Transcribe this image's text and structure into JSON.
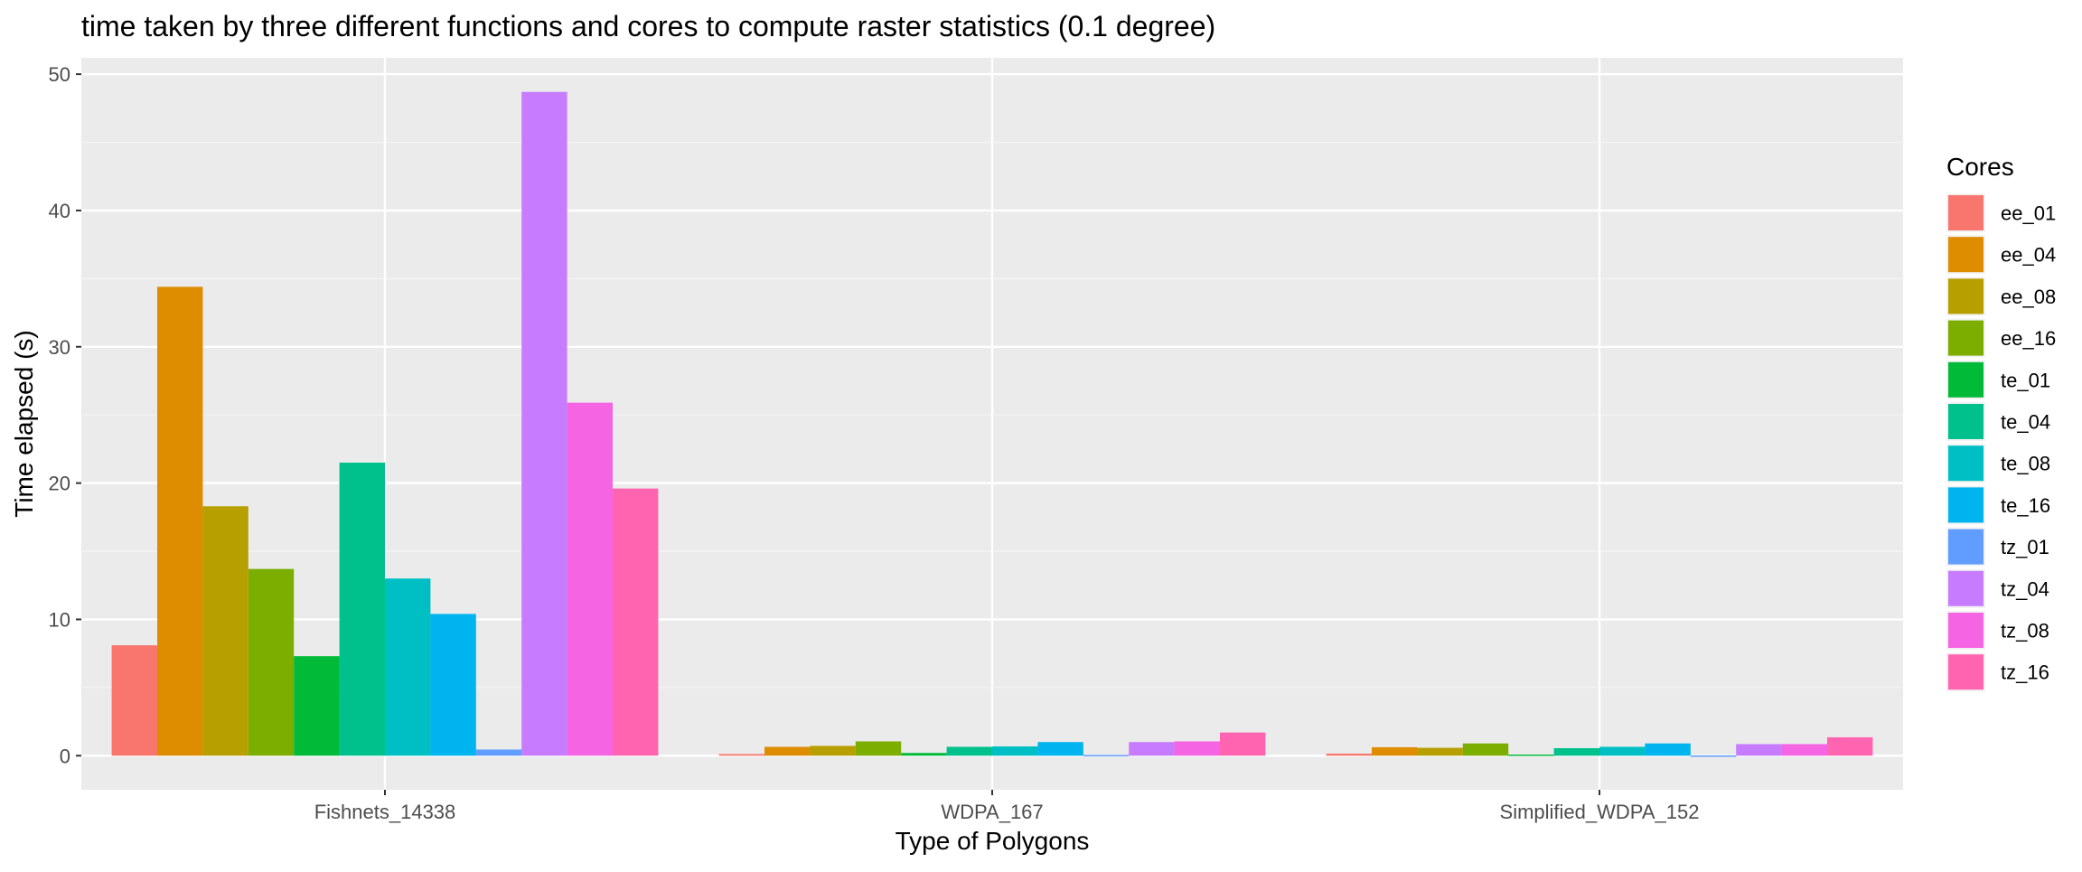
{
  "chart_data": {
    "type": "bar",
    "title": "time taken by three different functions and cores to compute raster statistics (0.1 degree)",
    "xlabel": "Type of Polygons",
    "ylabel": "Time elapsed (s)",
    "ylim": [
      -2.5,
      51.2
    ],
    "yticks": [
      0,
      10,
      20,
      30,
      40,
      50
    ],
    "grid": true,
    "legend_position": "right",
    "legend_title": "Cores",
    "categories": [
      "Fishnets_14338",
      "WDPA_167",
      "Simplified_WDPA_152"
    ],
    "series": [
      {
        "name": "ee_01",
        "color": "#F8766D",
        "values": [
          8.1,
          0.12,
          0.15
        ]
      },
      {
        "name": "ee_04",
        "color": "#DE8C00",
        "values": [
          34.4,
          0.65,
          0.62
        ]
      },
      {
        "name": "ee_08",
        "color": "#B79F00",
        "values": [
          18.3,
          0.72,
          0.58
        ]
      },
      {
        "name": "ee_16",
        "color": "#7CAE00",
        "values": [
          13.7,
          1.05,
          0.9
        ]
      },
      {
        "name": "te_01",
        "color": "#00BA38",
        "values": [
          7.3,
          0.2,
          0.08
        ]
      },
      {
        "name": "te_04",
        "color": "#00C08B",
        "values": [
          21.5,
          0.65,
          0.55
        ]
      },
      {
        "name": "te_08",
        "color": "#00BFC4",
        "values": [
          13.0,
          0.68,
          0.65
        ]
      },
      {
        "name": "te_16",
        "color": "#00B4F0",
        "values": [
          10.4,
          1.0,
          0.9
        ]
      },
      {
        "name": "tz_01",
        "color": "#619CFF",
        "values": [
          0.45,
          0.05,
          0.02
        ]
      },
      {
        "name": "tz_04",
        "color": "#C77CFF",
        "values": [
          48.7,
          1.0,
          0.85
        ]
      },
      {
        "name": "tz_08",
        "color": "#F564E3",
        "values": [
          25.9,
          1.05,
          0.85
        ]
      },
      {
        "name": "tz_16",
        "color": "#FF64B0",
        "values": [
          19.6,
          1.7,
          1.35
        ]
      }
    ]
  },
  "colors": {
    "panel_background": "#EBEBEB",
    "grid_major": "#FFFFFF",
    "grid_minor": "#F5F5F5"
  }
}
